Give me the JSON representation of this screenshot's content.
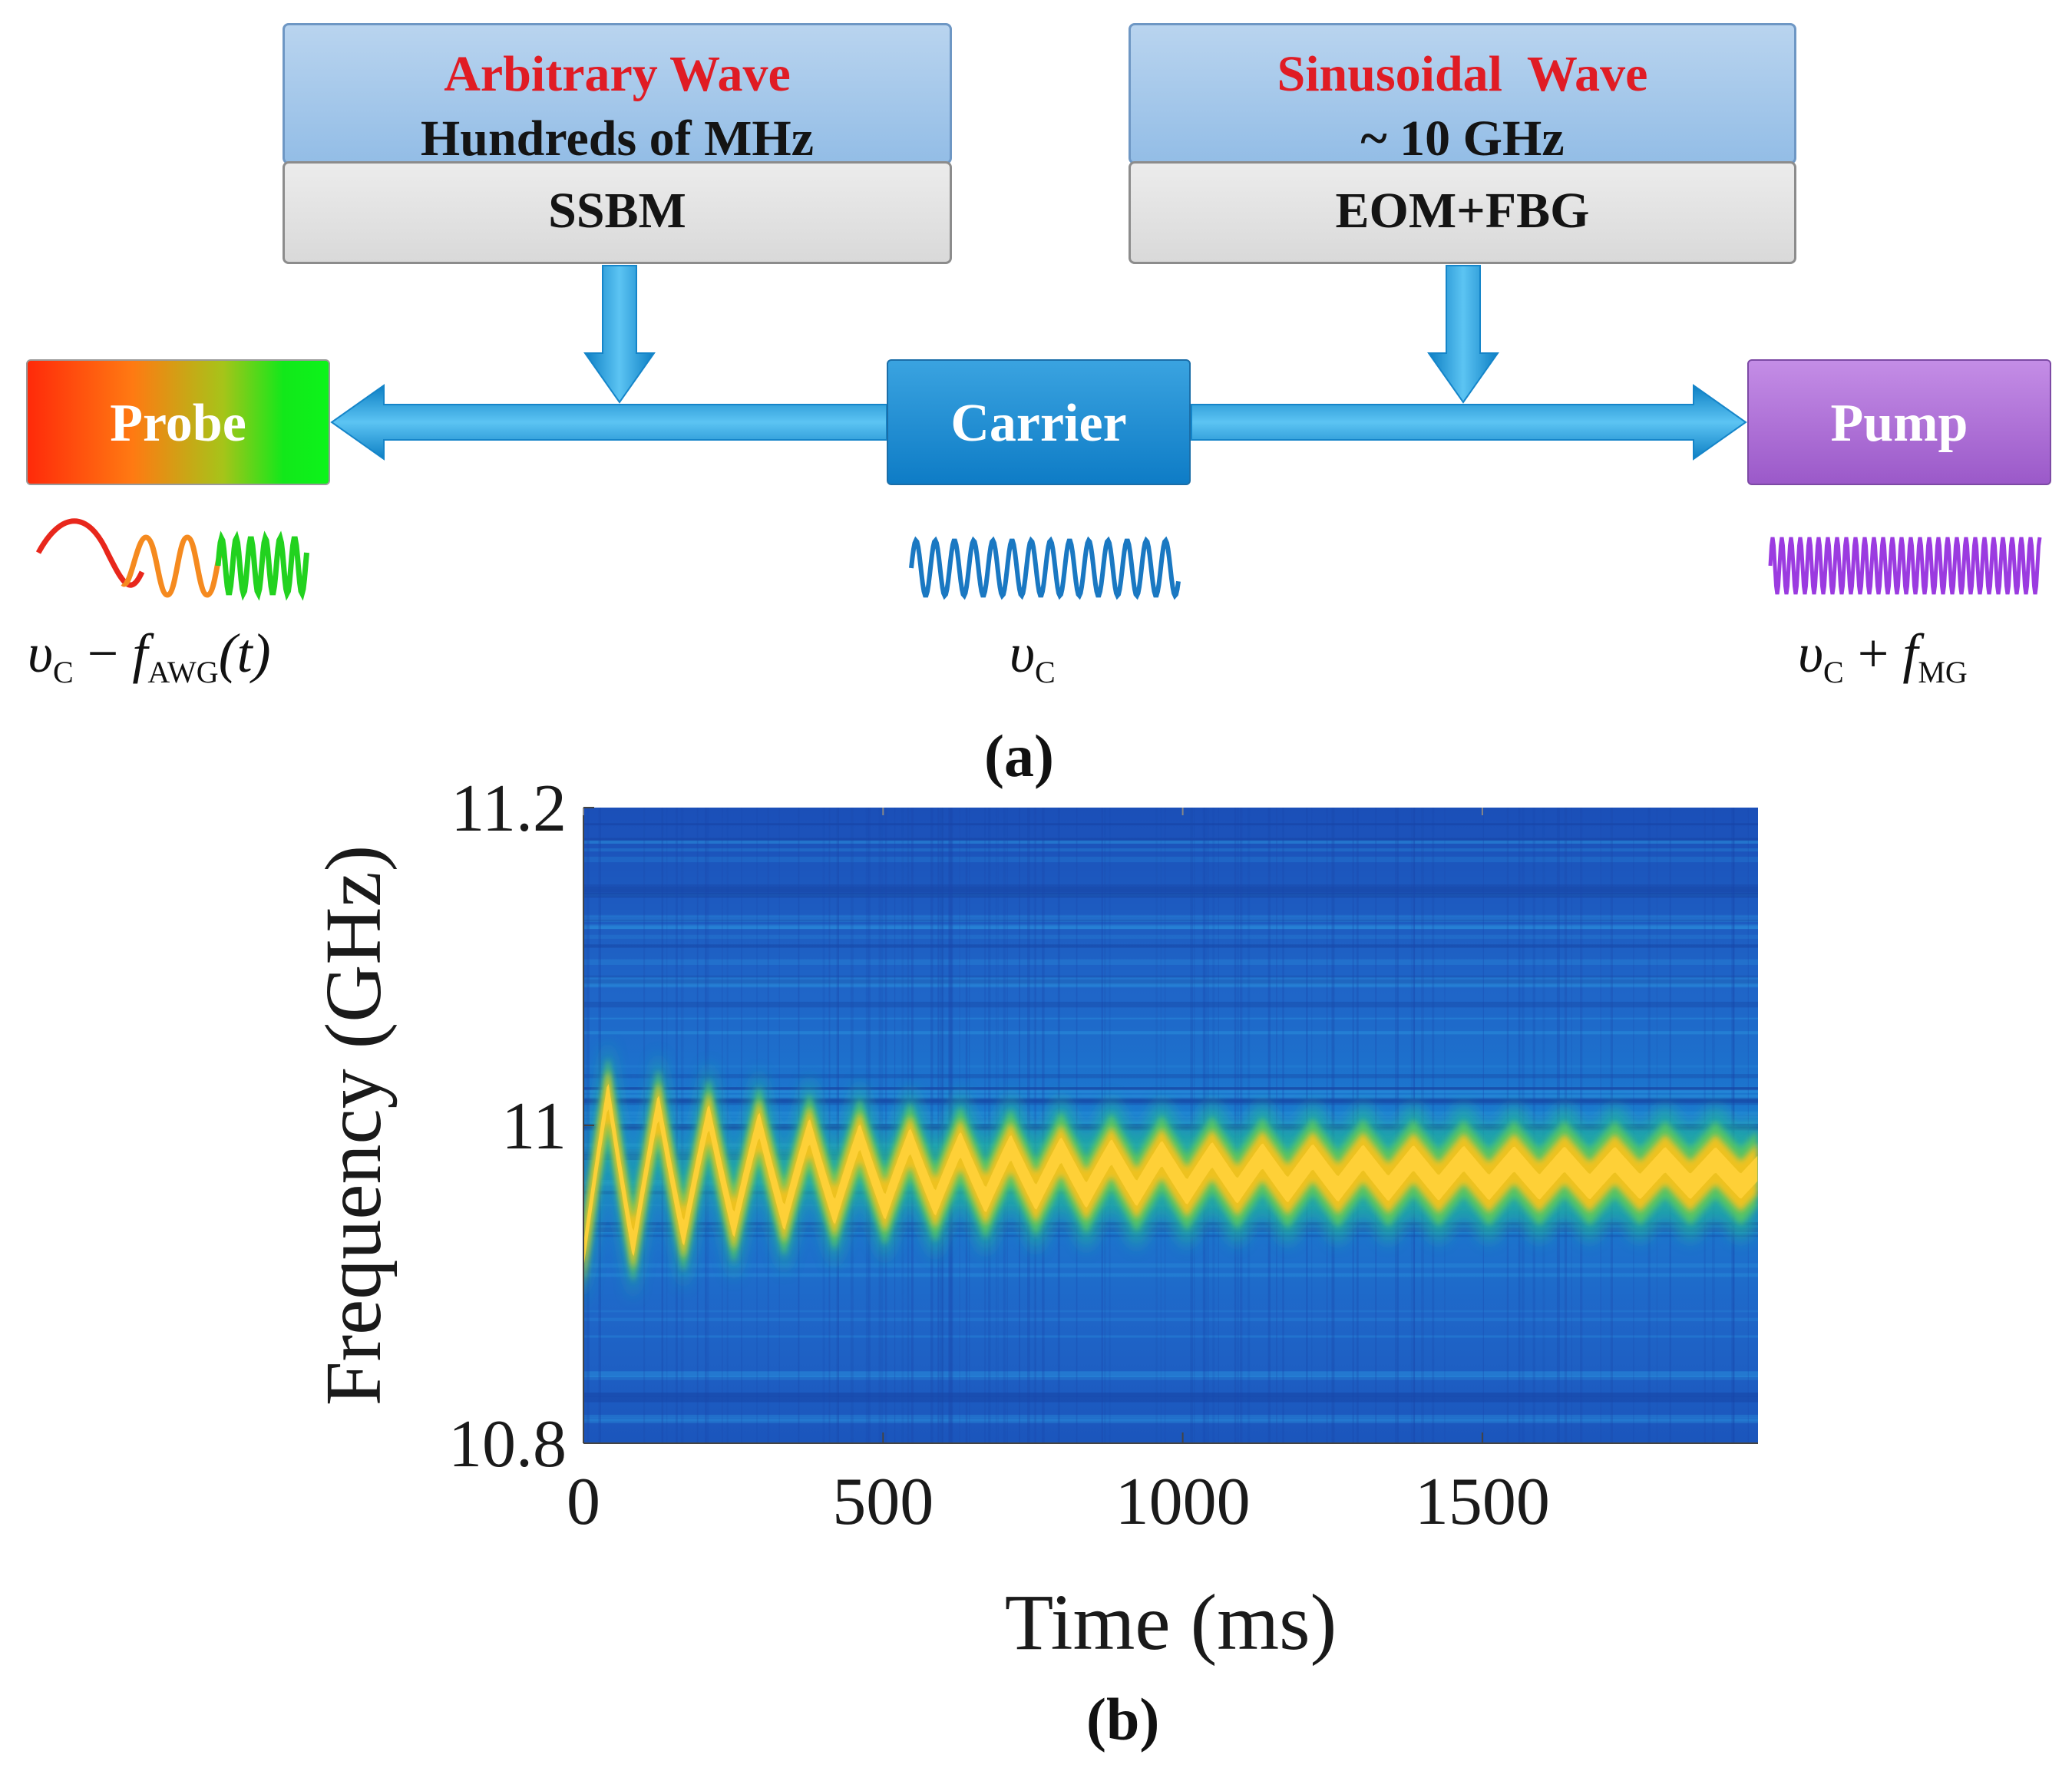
{
  "diagram": {
    "arbitrary_box": {
      "title": "Arbitrary Wave",
      "subtitle": "Hundreds of MHz",
      "module": "SSBM"
    },
    "sinusoidal_box": {
      "title": "Sinusoidal  Wave",
      "subtitle": "~ 10 GHz",
      "module": "EOM+FBG"
    },
    "nodes": {
      "probe": "Probe",
      "carrier": "Carrier",
      "pump": "Pump"
    },
    "formulas": {
      "probe": {
        "v": "υ",
        "sub_c": "C",
        "op": " − ",
        "f": "f",
        "sub_awg": "AWG",
        "arg": "(t)"
      },
      "carrier": {
        "v": "υ",
        "sub_c": "C"
      },
      "pump": {
        "v": "υ",
        "sub_c": "C",
        "op": " + ",
        "f": "f",
        "sub_mg": "MG"
      }
    },
    "colors": {
      "arrow": "#1e9ad8",
      "probe_wave_red": "#e8271c",
      "probe_wave_orange": "#f58a1f",
      "probe_wave_green": "#22d21f",
      "carrier_wave": "#1a78c2",
      "pump_wave": "#9b3be0"
    },
    "label": "(a)"
  },
  "chart_data": {
    "type": "heatmap",
    "title": "",
    "xlabel": "Time (ms)",
    "ylabel": "Frequency (GHz)",
    "xlim": [
      0,
      1960
    ],
    "ylim": [
      10.8,
      11.2
    ],
    "xticks": [
      "0",
      "500",
      "1000",
      "1500"
    ],
    "xtick_values": [
      0,
      500,
      1000,
      1500
    ],
    "yticks": [
      "10.8",
      "11",
      "11.2"
    ],
    "ytick_values": [
      10.8,
      11.0,
      11.2
    ],
    "center_frequency_ghz": 10.97,
    "oscillation_period_ms": 84,
    "initial_amplitude_ghz": 0.055,
    "settled_amplitude_ghz": 0.008,
    "colormap": [
      "#1f4fb8",
      "#1a86d6",
      "#23b59a",
      "#5cc95e",
      "#f7c21a",
      "#ffd23a"
    ],
    "label": "(b)"
  }
}
